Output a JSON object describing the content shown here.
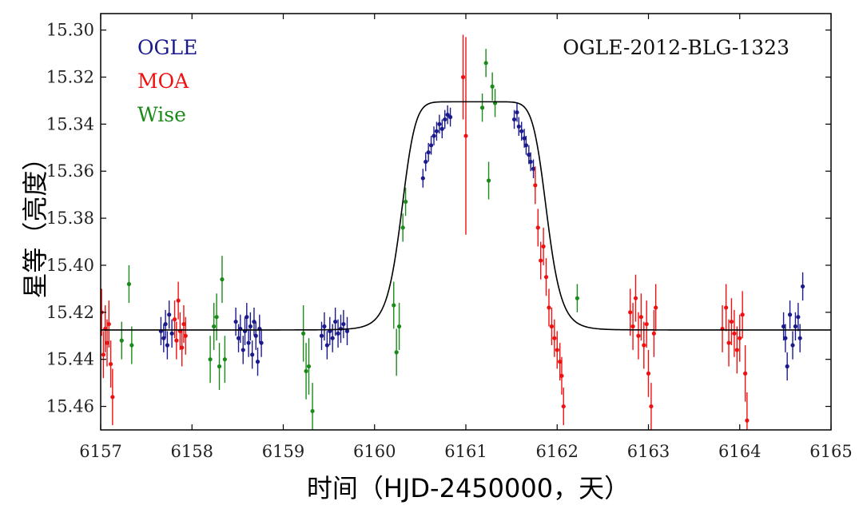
{
  "chart_data": {
    "type": "scatter",
    "title": "OGLE-2012-BLG-1323",
    "xlabel": "时间（HJD-2450000，天）",
    "ylabel": "星等（亮度）",
    "xlim": [
      6157,
      6165
    ],
    "ylim": [
      15.47,
      15.293
    ],
    "y_inverted": true,
    "grid": false,
    "legend_position": "top-left",
    "x_ticks": [
      "6157",
      "6158",
      "6159",
      "6160",
      "6161",
      "6162",
      "6163",
      "6164",
      "6165"
    ],
    "y_ticks": [
      "15.30",
      "15.32",
      "15.34",
      "15.36",
      "15.38",
      "15.40",
      "15.42",
      "15.44",
      "15.46"
    ],
    "series": [
      {
        "name": "OGLE",
        "color": "#1a1a8c",
        "points": [
          [
            6157.66,
            15.428,
            0.006
          ],
          [
            6157.69,
            15.431,
            0.006
          ],
          [
            6157.71,
            15.425,
            0.006
          ],
          [
            6157.73,
            15.434,
            0.006
          ],
          [
            6157.75,
            15.421,
            0.006
          ],
          [
            6157.78,
            15.429,
            0.006
          ],
          [
            6158.48,
            15.424,
            0.006
          ],
          [
            6158.51,
            15.431,
            0.006
          ],
          [
            6158.53,
            15.427,
            0.006
          ],
          [
            6158.56,
            15.436,
            0.006
          ],
          [
            6158.58,
            15.428,
            0.006
          ],
          [
            6158.6,
            15.422,
            0.006
          ],
          [
            6158.62,
            15.433,
            0.006
          ],
          [
            6158.64,
            15.426,
            0.006
          ],
          [
            6158.66,
            15.438,
            0.006
          ],
          [
            6158.68,
            15.424,
            0.006
          ],
          [
            6158.7,
            15.43,
            0.006
          ],
          [
            6158.72,
            15.441,
            0.006
          ],
          [
            6158.74,
            15.427,
            0.006
          ],
          [
            6158.76,
            15.433,
            0.006
          ],
          [
            6159.42,
            15.43,
            0.006
          ],
          [
            6159.45,
            15.426,
            0.006
          ],
          [
            6159.48,
            15.434,
            0.006
          ],
          [
            6159.51,
            15.428,
            0.006
          ],
          [
            6159.54,
            15.431,
            0.006
          ],
          [
            6159.57,
            15.424,
            0.006
          ],
          [
            6159.6,
            15.429,
            0.006
          ],
          [
            6159.63,
            15.427,
            0.006
          ],
          [
            6159.66,
            15.425,
            0.006
          ],
          [
            6159.7,
            15.428,
            0.006
          ],
          [
            6160.53,
            15.363,
            0.004
          ],
          [
            6160.56,
            15.356,
            0.004
          ],
          [
            6160.59,
            15.352,
            0.004
          ],
          [
            6160.62,
            15.349,
            0.004
          ],
          [
            6160.65,
            15.345,
            0.004
          ],
          [
            6160.68,
            15.343,
            0.004
          ],
          [
            6160.71,
            15.34,
            0.004
          ],
          [
            6160.74,
            15.342,
            0.004
          ],
          [
            6160.77,
            15.338,
            0.004
          ],
          [
            6160.8,
            15.336,
            0.004
          ],
          [
            6160.83,
            15.337,
            0.004
          ],
          [
            6161.53,
            15.338,
            0.004
          ],
          [
            6161.56,
            15.335,
            0.004
          ],
          [
            6161.58,
            15.341,
            0.004
          ],
          [
            6161.61,
            15.343,
            0.004
          ],
          [
            6161.64,
            15.346,
            0.004
          ],
          [
            6161.66,
            15.349,
            0.004
          ],
          [
            6161.69,
            15.353,
            0.004
          ],
          [
            6161.71,
            15.356,
            0.004
          ],
          [
            6161.74,
            15.359,
            0.004
          ],
          [
            6164.48,
            15.426,
            0.006
          ],
          [
            6164.5,
            15.431,
            0.006
          ],
          [
            6164.52,
            15.443,
            0.006
          ],
          [
            6164.55,
            15.421,
            0.006
          ],
          [
            6164.58,
            15.434,
            0.006
          ],
          [
            6164.61,
            15.426,
            0.006
          ],
          [
            6164.64,
            15.422,
            0.006
          ],
          [
            6164.66,
            15.431,
            0.006
          ],
          [
            6164.69,
            15.409,
            0.006
          ]
        ]
      },
      {
        "name": "MOA",
        "color": "#ee1111",
        "points": [
          [
            6157.01,
            15.42,
            0.01
          ],
          [
            6157.03,
            15.438,
            0.01
          ],
          [
            6157.05,
            15.427,
            0.01
          ],
          [
            6157.07,
            15.433,
            0.01
          ],
          [
            6157.09,
            15.425,
            0.01
          ],
          [
            6157.11,
            15.442,
            0.01
          ],
          [
            6157.13,
            15.456,
            0.012
          ],
          [
            6157.81,
            15.423,
            0.008
          ],
          [
            6157.83,
            15.432,
            0.008
          ],
          [
            6157.85,
            15.415,
            0.008
          ],
          [
            6157.87,
            15.428,
            0.008
          ],
          [
            6157.89,
            15.435,
            0.008
          ],
          [
            6157.91,
            15.425,
            0.008
          ],
          [
            6157.93,
            15.43,
            0.008
          ],
          [
            6160.97,
            15.32,
            0.018
          ],
          [
            6161.0,
            15.345,
            0.042
          ],
          [
            6161.76,
            15.366,
            0.008
          ],
          [
            6161.79,
            15.384,
            0.008
          ],
          [
            6161.82,
            15.398,
            0.008
          ],
          [
            6161.85,
            15.392,
            0.008
          ],
          [
            6161.88,
            15.405,
            0.008
          ],
          [
            6161.91,
            15.418,
            0.008
          ],
          [
            6161.94,
            15.426,
            0.008
          ],
          [
            6161.97,
            15.431,
            0.008
          ],
          [
            6162.0,
            15.436,
            0.008
          ],
          [
            6162.03,
            15.441,
            0.008
          ],
          [
            6162.05,
            15.447,
            0.008
          ],
          [
            6162.07,
            15.46,
            0.008
          ],
          [
            6162.8,
            15.42,
            0.01
          ],
          [
            6162.83,
            15.426,
            0.01
          ],
          [
            6162.86,
            15.414,
            0.01
          ],
          [
            6162.89,
            15.43,
            0.01
          ],
          [
            6162.92,
            15.422,
            0.01
          ],
          [
            6162.95,
            15.434,
            0.01
          ],
          [
            6162.98,
            15.425,
            0.01
          ],
          [
            6163.0,
            15.446,
            0.01
          ],
          [
            6163.03,
            15.46,
            0.01
          ],
          [
            6163.06,
            15.429,
            0.01
          ],
          [
            6163.08,
            15.418,
            0.01
          ],
          [
            6163.81,
            15.427,
            0.01
          ],
          [
            6163.85,
            15.418,
            0.01
          ],
          [
            6163.88,
            15.433,
            0.01
          ],
          [
            6163.91,
            15.424,
            0.01
          ],
          [
            6163.94,
            15.429,
            0.01
          ],
          [
            6163.97,
            15.436,
            0.01
          ],
          [
            6164.0,
            15.431,
            0.01
          ],
          [
            6164.03,
            15.421,
            0.01
          ],
          [
            6164.06,
            15.446,
            0.012
          ],
          [
            6164.08,
            15.466,
            0.012
          ]
        ]
      },
      {
        "name": "Wise",
        "color": "#1a8a1a",
        "points": [
          [
            6157.23,
            15.432,
            0.008
          ],
          [
            6157.31,
            15.408,
            0.008
          ],
          [
            6157.34,
            15.434,
            0.008
          ],
          [
            6158.2,
            15.44,
            0.01
          ],
          [
            6158.24,
            15.426,
            0.01
          ],
          [
            6158.27,
            15.422,
            0.01
          ],
          [
            6158.3,
            15.443,
            0.01
          ],
          [
            6158.33,
            15.406,
            0.01
          ],
          [
            6158.36,
            15.44,
            0.01
          ],
          [
            6159.22,
            15.429,
            0.012
          ],
          [
            6159.25,
            15.445,
            0.012
          ],
          [
            6159.28,
            15.443,
            0.012
          ],
          [
            6159.32,
            15.462,
            0.012
          ],
          [
            6160.21,
            15.417,
            0.01
          ],
          [
            6160.24,
            15.437,
            0.01
          ],
          [
            6160.27,
            15.426,
            0.01
          ],
          [
            6160.31,
            15.384,
            0.006
          ],
          [
            6160.34,
            15.373,
            0.006
          ],
          [
            6161.18,
            15.333,
            0.006
          ],
          [
            6161.22,
            15.314,
            0.006
          ],
          [
            6161.25,
            15.364,
            0.008
          ],
          [
            6161.29,
            15.324,
            0.006
          ],
          [
            6161.32,
            15.331,
            0.006
          ],
          [
            6162.22,
            15.414,
            0.006
          ]
        ]
      }
    ],
    "model_curve": {
      "name": "model",
      "color": "#000000",
      "baseline": 15.4275,
      "t0": 6161.09,
      "peak": 15.3305,
      "half_width": 0.8
    }
  }
}
